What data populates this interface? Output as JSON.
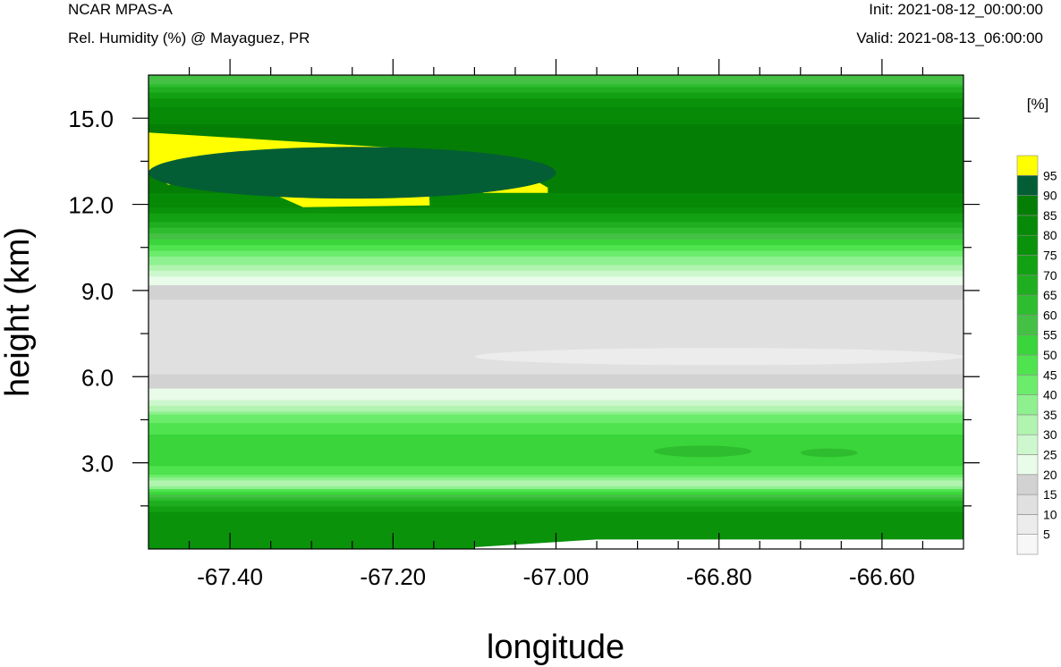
{
  "header": {
    "model": "NCAR MPAS-A",
    "title": "Rel. Humidity (%) @ Mayaguez, PR",
    "init": "Init: 2021-08-12_00:00:00",
    "valid": "Valid: 2021-08-13_06:00:00"
  },
  "chart_data": {
    "type": "heatmap",
    "title": "Rel. Humidity (%) @ Mayaguez, PR",
    "xlabel": "longitude",
    "ylabel": "height (km)",
    "xlim": [
      -67.5,
      -66.5
    ],
    "ylim": [
      0,
      16.5
    ],
    "x_ticks": [
      -67.4,
      -67.2,
      -67.0,
      -66.8,
      -66.6
    ],
    "x_tick_labels": [
      "-67.40",
      "-67.20",
      "-67.00",
      "-66.80",
      "-66.60"
    ],
    "y_ticks": [
      3,
      6,
      9,
      12,
      15
    ],
    "y_tick_labels": [
      "3.0",
      "6.0",
      "9.0",
      "12.0",
      "15.0"
    ],
    "colorbar": {
      "unit_label": "[%]",
      "levels": [
        5,
        10,
        15,
        20,
        25,
        30,
        35,
        40,
        45,
        50,
        55,
        60,
        65,
        70,
        75,
        80,
        85,
        90,
        95
      ],
      "colors": [
        "#f7f7f7",
        "#ececec",
        "#e0e0e0",
        "#d2d2d2",
        "#e9fbe9",
        "#cdf7cd",
        "#b0f4b0",
        "#8ff08f",
        "#6bec6b",
        "#4fe34f",
        "#3ad53a",
        "#44c044",
        "#2ebd2e",
        "#1fae1f",
        "#12a112",
        "#0b920b",
        "#078a07",
        "#057e05",
        "#035e35",
        "#ffff00"
      ]
    },
    "vertical_profile": [
      {
        "z": 0.2,
        "rh": 75
      },
      {
        "z": 0.6,
        "rh": 80
      },
      {
        "z": 1.0,
        "rh": 78
      },
      {
        "z": 1.5,
        "rh": 72
      },
      {
        "z": 2.0,
        "rh": 50
      },
      {
        "z": 2.3,
        "rh": 30
      },
      {
        "z": 2.7,
        "rh": 48
      },
      {
        "z": 3.3,
        "rh": 55
      },
      {
        "z": 4.0,
        "rh": 50
      },
      {
        "z": 4.6,
        "rh": 42
      },
      {
        "z": 5.2,
        "rh": 25
      },
      {
        "z": 5.7,
        "rh": 18
      },
      {
        "z": 6.5,
        "rh": 12
      },
      {
        "z": 7.5,
        "rh": 10
      },
      {
        "z": 8.6,
        "rh": 14
      },
      {
        "z": 9.2,
        "rh": 20
      },
      {
        "z": 9.8,
        "rh": 32
      },
      {
        "z": 10.6,
        "rh": 50
      },
      {
        "z": 11.3,
        "rh": 68
      },
      {
        "z": 12.0,
        "rh": 82
      },
      {
        "z": 12.8,
        "rh": 88
      },
      {
        "z": 13.8,
        "rh": 88
      },
      {
        "z": 14.8,
        "rh": 85
      },
      {
        "z": 15.4,
        "rh": 80
      },
      {
        "z": 15.9,
        "rh": 70
      },
      {
        "z": 16.3,
        "rh": 58
      }
    ],
    "features": [
      {
        "name": "saturated layer west",
        "rh": 96,
        "lon": [
          -67.5,
          -67.155
        ],
        "height_km": [
          11.9,
          14.5
        ]
      },
      {
        "name": "saturated pocket",
        "rh": 96,
        "lon": [
          -67.09,
          -67.01
        ],
        "height_km": [
          12.4,
          13.3
        ]
      },
      {
        "name": "moist layer",
        "rh": 92,
        "lon": [
          -67.5,
          -67.0
        ],
        "height_km": [
          12.2,
          14.0
        ]
      },
      {
        "name": "drier mid-level tongue",
        "rh": 5,
        "lon": [
          -67.1,
          -66.5
        ],
        "height_km": [
          6.4,
          7.0
        ]
      },
      {
        "name": "moist patch",
        "rh": 62,
        "lon": [
          -66.88,
          -66.76
        ],
        "height_km": [
          3.2,
          3.6
        ]
      },
      {
        "name": "moist patch",
        "rh": 62,
        "lon": [
          -66.7,
          -66.63
        ],
        "height_km": [
          3.2,
          3.5
        ]
      },
      {
        "name": "terrain cutoff",
        "rh": 0,
        "lon": [
          -67.1,
          -66.5
        ],
        "height_km": [
          0,
          0.6
        ]
      }
    ]
  }
}
